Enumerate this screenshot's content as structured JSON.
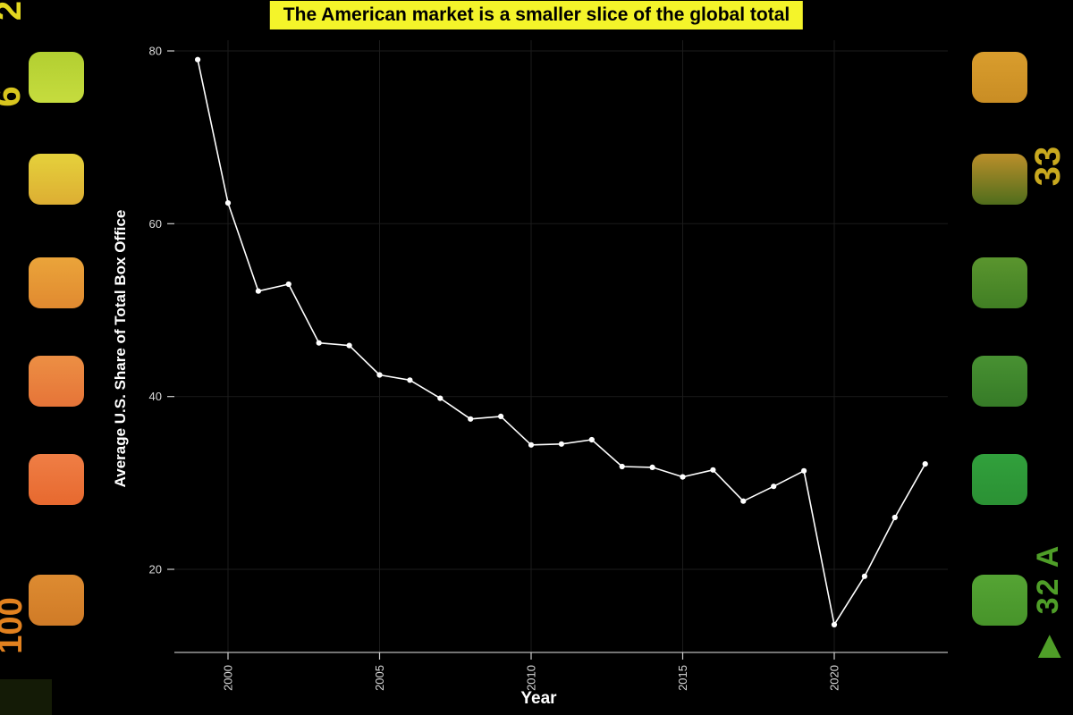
{
  "chart_data": {
    "type": "line",
    "title": "The American market is a smaller slice of the global total",
    "xlabel": "Year",
    "ylabel": "Average U.S. Share of Total Box Office",
    "x": [
      1999,
      2000,
      2001,
      2002,
      2003,
      2004,
      2005,
      2006,
      2007,
      2008,
      2009,
      2010,
      2011,
      2012,
      2013,
      2014,
      2015,
      2016,
      2017,
      2018,
      2019,
      2020,
      2021,
      2022,
      2023
    ],
    "values": [
      79.0,
      62.4,
      52.2,
      53.0,
      46.2,
      45.9,
      42.5,
      41.9,
      39.8,
      37.4,
      37.7,
      34.4,
      34.5,
      35.0,
      31.9,
      31.8,
      30.7,
      31.5,
      27.9,
      29.6,
      31.4,
      13.6,
      19.2,
      26.0,
      32.2
    ],
    "x_ticks": [
      2000,
      2005,
      2010,
      2015,
      2020
    ],
    "y_ticks": [
      20,
      40,
      60,
      80
    ],
    "xlim": [
      1998.5,
      2023.8
    ],
    "ylim": [
      10,
      82
    ],
    "grid": true,
    "legend": "none",
    "line_color": "#ffffff",
    "point_color": "#ffffff",
    "background": "#000000",
    "title_bg": "#f4f42a",
    "title_color": "#000000"
  },
  "film": {
    "markings": {
      "top_left": "2",
      "left_upper": "6",
      "left_bottom": "100",
      "right_upper": "33",
      "right_lower": "32 A"
    },
    "arrow_icon": "▲",
    "marking_colors": {
      "top_left": "#e3d81f",
      "left_upper": "#d8c51e",
      "left_bottom": "#e2811f",
      "right_upper": "#c9a91f",
      "right_lower": "#4f9e28",
      "arrow": "#4f9e28"
    },
    "left_holes": [
      {
        "from": "#b2cf31",
        "to": "#c6dc3e"
      },
      {
        "from": "#e5d13b",
        "to": "#ddae33"
      },
      {
        "from": "#eaa43a",
        "to": "#e18a30"
      },
      {
        "from": "#ec8f44",
        "to": "#e67438"
      },
      {
        "from": "#ef7e45",
        "to": "#e7692f"
      },
      {
        "from": "#dd8b31",
        "to": "#d07b27"
      }
    ],
    "right_holes": [
      {
        "from": "#d99d2d",
        "to": "#c98d24"
      },
      {
        "from": "#bb8f2a",
        "to": "#4f6d1c"
      },
      {
        "from": "#5a952e",
        "to": "#417f24"
      },
      {
        "from": "#489132",
        "to": "#367b27"
      },
      {
        "from": "#31a03c",
        "to": "#2b9134"
      },
      {
        "from": "#55a434",
        "to": "#47942a"
      }
    ]
  }
}
